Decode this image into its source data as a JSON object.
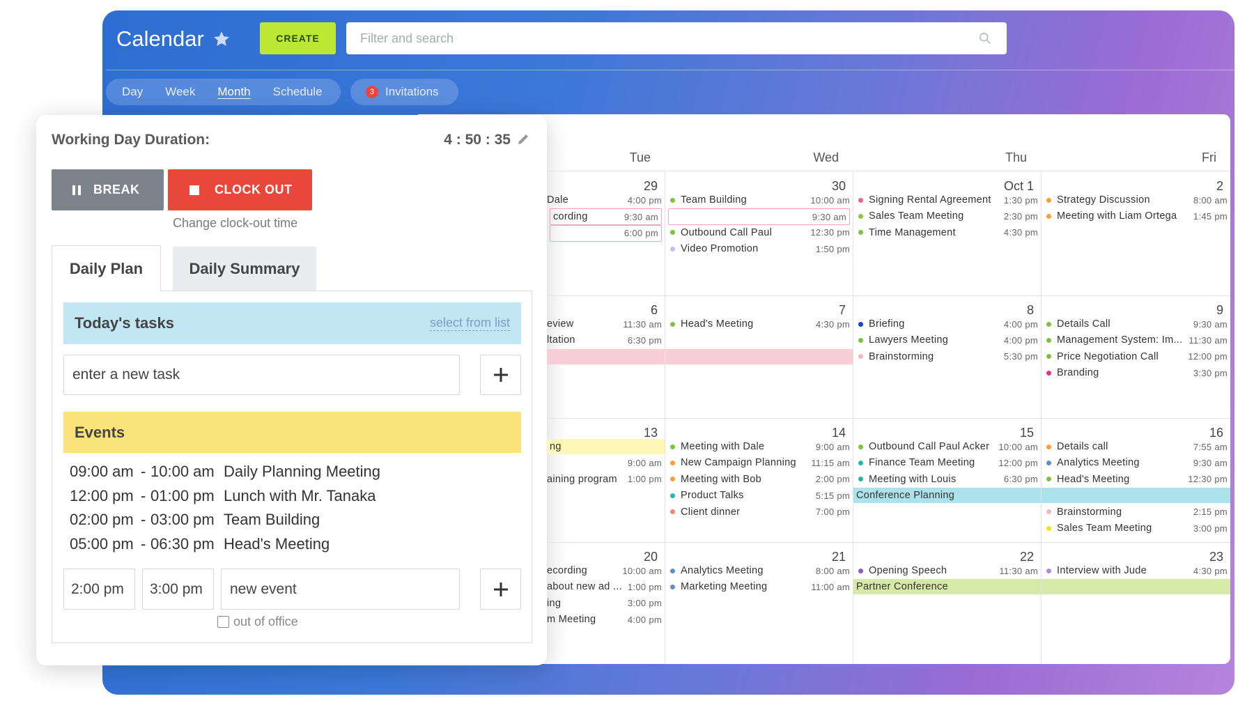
{
  "header": {
    "title": "Calendar",
    "create_button": "CREATE",
    "search_placeholder": "Filter and search"
  },
  "view_tabs": [
    {
      "label": "Day"
    },
    {
      "label": "Week"
    },
    {
      "label": "Month",
      "active": true
    },
    {
      "label": "Schedule"
    }
  ],
  "invitations": {
    "count": "3",
    "label": "Invitations"
  },
  "calendar": {
    "weekdays": [
      "Tue",
      "Wed",
      "Thu",
      "Fri"
    ],
    "weeks": [
      [
        {
          "date": "29",
          "events": [
            {
              "title": "Dale",
              "time": "4:00 pm"
            },
            {
              "title": "cording",
              "time": "9:30 am",
              "kind": "outline"
            },
            {
              "time": "6:00 pm",
              "kind": "outline"
            }
          ]
        },
        {
          "date": "30",
          "events": [
            {
              "title": "Team Building",
              "time": "10:00 am",
              "color": "#7cc242"
            },
            {
              "time": "9:30 am",
              "kind": "outline"
            },
            {
              "title": "Outbound Call Paul",
              "time": "12:30 pm",
              "color": "#7cc242"
            },
            {
              "title": "Video Promotion",
              "time": "1:50 pm",
              "color": "#c9bdf2"
            }
          ]
        },
        {
          "date": "Oct 1",
          "events": [
            {
              "title": "Signing Rental Agreement",
              "time": "1:30 pm",
              "color": "#e8678a"
            },
            {
              "title": "Sales Team Meeting",
              "time": "2:30 pm",
              "color": "#8cc63f"
            },
            {
              "title": "Time Management",
              "time": "4:30 pm",
              "color": "#7cc242"
            }
          ]
        },
        {
          "date": "2",
          "events": [
            {
              "title": "Strategy Discussion",
              "time": "8:00 am",
              "color": "#f4a22d"
            },
            {
              "title": "Meeting with Liam Ortega",
              "time": "1:45 pm",
              "color": "#f4a22d"
            }
          ]
        }
      ],
      [
        {
          "date": "6",
          "events": [
            {
              "title": "eview",
              "time": "11:30 am"
            },
            {
              "title": "ltation",
              "time": "6:30 pm"
            },
            {
              "kind": "bar",
              "color": "#f7cdd8"
            }
          ]
        },
        {
          "date": "7",
          "events": [
            {
              "title": "Head's Meeting",
              "time": "4:30 pm",
              "color": "#7cc242"
            },
            null,
            {
              "kind": "bar",
              "color": "#f7cdd8"
            }
          ]
        },
        {
          "date": "8",
          "events": [
            {
              "title": "Briefing",
              "time": "4:00 pm",
              "color": "#1e3fd0"
            },
            {
              "title": "Lawyers Meeting",
              "time": "4:00 pm",
              "color": "#7cc242"
            },
            {
              "title": "Brainstorming",
              "time": "5:30 pm",
              "color": "#f4b6c4"
            }
          ]
        },
        {
          "date": "9",
          "events": [
            {
              "title": "Details Call",
              "time": "9:30 am",
              "color": "#7cc242"
            },
            {
              "title": "Management System: Im...",
              "time": "11:30 am",
              "color": "#7cc242"
            },
            {
              "title": "Price Negotiation Call",
              "time": "12:00 pm",
              "color": "#7cc242"
            },
            {
              "title": "Branding",
              "time": "3:30 pm",
              "color": "#e0338a"
            }
          ]
        }
      ],
      [
        {
          "date": "13",
          "events": [
            {
              "title": "ng",
              "kind": "bar",
              "color": "#fdf7b6"
            },
            {
              "time": "9:00 am"
            },
            {
              "title": "aining program",
              "time": "1:00 pm"
            }
          ]
        },
        {
          "date": "14",
          "events": [
            {
              "title": "Meeting with Dale",
              "time": "9:00 am",
              "color": "#7cc242"
            },
            {
              "title": "New Campaign Planning",
              "time": "11:15 am",
              "color": "#f4a22d"
            },
            {
              "title": "Meeting with Bob",
              "time": "2:00 pm",
              "color": "#f4a22d"
            },
            {
              "title": "Product Talks",
              "time": "5:15 pm",
              "color": "#26b5a6"
            },
            {
              "title": "Client dinner",
              "time": "7:00 pm",
              "color": "#f08a6c"
            }
          ]
        },
        {
          "date": "15",
          "events": [
            {
              "title": "Outbound Call Paul Acker",
              "time": "10:00 am",
              "color": "#7cc242"
            },
            {
              "title": "Finance Team Meeting",
              "time": "12:00 pm",
              "color": "#26b5a6"
            },
            {
              "title": "Meeting with Louis",
              "time": "6:30 pm",
              "color": "#26b5a6"
            },
            {
              "title": "Conference Planning",
              "kind": "bar",
              "color": "#abe2ec"
            }
          ]
        },
        {
          "date": "16",
          "events": [
            {
              "title": "Details call",
              "time": "7:55 am",
              "color": "#f4a22d"
            },
            {
              "title": "Analytics Meeting",
              "time": "9:30 am",
              "color": "#5b8fc6"
            },
            {
              "title": "Head's Meeting",
              "time": "12:30 pm",
              "color": "#7cc242"
            },
            {
              "kind": "bar",
              "color": "#abe2ec"
            },
            {
              "title": "Brainstorming",
              "time": "2:15 pm",
              "color": "#f4b6c4"
            },
            {
              "title": "Sales Team Meeting",
              "time": "3:00 pm",
              "color": "#f3e21e"
            }
          ]
        }
      ],
      [
        {
          "date": "20",
          "events": [
            {
              "title": "ecording",
              "time": "10:00 am"
            },
            {
              "title": "about new ad ...",
              "time": "1:00 pm"
            },
            {
              "title": "ing",
              "time": "3:00 pm"
            },
            {
              "title": "m Meeting",
              "time": "4:00 pm"
            }
          ]
        },
        {
          "date": "21",
          "events": [
            {
              "title": "Analytics Meeting",
              "time": "8:00 am",
              "color": "#5b8fc6"
            },
            {
              "title": "Marketing Meeting",
              "time": "11:00 am",
              "color": "#5b8fc6"
            }
          ]
        },
        {
          "date": "22",
          "events": [
            {
              "title": "Opening Speech",
              "time": "11:30 am",
              "color": "#8e5ac4"
            },
            {
              "title": "Partner Conference",
              "kind": "bar",
              "color": "#d5e9a8"
            }
          ]
        },
        {
          "date": "23",
          "events": [
            {
              "title": "Interview with Jude",
              "time": "4:30 pm",
              "color": "#b48ad6"
            },
            {
              "kind": "bar",
              "color": "#d5e9a8"
            }
          ]
        }
      ]
    ]
  },
  "panel": {
    "duration_label": "Working Day Duration:",
    "duration": "4 : 50 : 35",
    "break_button": "BREAK",
    "clock_out_button": "CLOCK OUT",
    "change_link": "Change clock-out time",
    "tabs": [
      {
        "label": "Daily Plan",
        "active": true
      },
      {
        "label": "Daily Summary"
      }
    ],
    "tasks_title": "Today's tasks",
    "select_link": "select from list",
    "task_placeholder": "enter a new task",
    "events_title": "Events",
    "event_separator": "-",
    "events": [
      {
        "start": "09:00 am",
        "end": "10:00 am",
        "title": "Daily Planning Meeting"
      },
      {
        "start": "12:00 pm",
        "end": "01:00 pm",
        "title": "Lunch with Mr. Tanaka"
      },
      {
        "start": "02:00 pm",
        "end": "03:00 pm",
        "title": "Team Building"
      },
      {
        "start": "05:00 pm",
        "end": "06:30 pm",
        "title": "Head's Meeting"
      }
    ],
    "new_event": {
      "start": "2:00 pm",
      "end": "3:00 pm",
      "title_placeholder": "new event",
      "out_of_office": "out of office"
    }
  }
}
